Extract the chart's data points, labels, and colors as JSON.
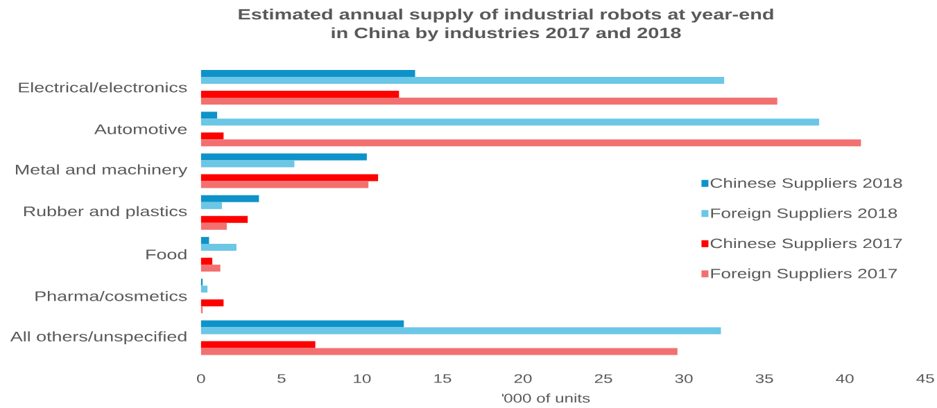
{
  "chart_data": {
    "type": "bar",
    "orientation": "horizontal",
    "title": "Estimated annual supply of industrial robots at year-end in China by industries 2017 and 2018",
    "xlabel": "'000 of units",
    "categories": [
      "Electrical/electronics",
      "Automotive",
      "Metal and machinery",
      "Rubber and plastics",
      "Food",
      "Pharma/cosmetics",
      "All others/unspecified"
    ],
    "series": [
      {
        "name": "Chinese Suppliers 2018",
        "color": "#0e93c9",
        "values": [
          13.3,
          1.0,
          10.3,
          3.6,
          0.5,
          0.1,
          12.6
        ]
      },
      {
        "name": "Foreign Suppliers 2018",
        "color": "#6cc6e6",
        "values": [
          32.5,
          38.4,
          5.8,
          1.3,
          2.2,
          0.4,
          32.3
        ]
      },
      {
        "name": "Chinese Suppliers 2017",
        "color": "#ff0000",
        "values": [
          12.3,
          1.4,
          11.0,
          2.9,
          0.7,
          1.4,
          7.1
        ]
      },
      {
        "name": "Foreign Suppliers 2017",
        "color": "#f37070",
        "values": [
          35.8,
          41.0,
          10.4,
          1.6,
          1.2,
          0.1,
          29.6
        ]
      }
    ],
    "xlim": [
      0,
      45
    ],
    "xticks": [
      0,
      5,
      10,
      15,
      20,
      25,
      30,
      35,
      40,
      45
    ],
    "legend": "right"
  }
}
